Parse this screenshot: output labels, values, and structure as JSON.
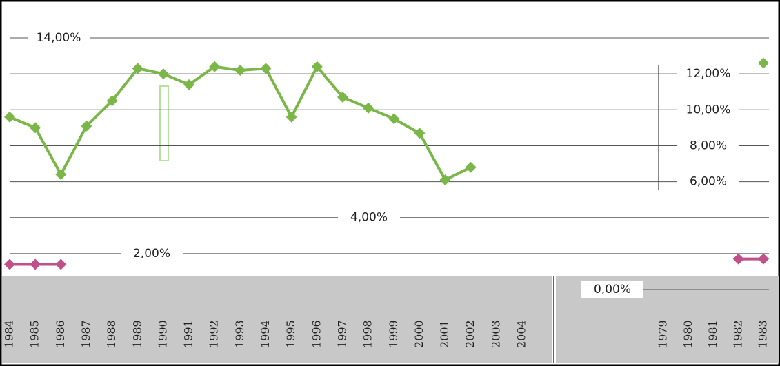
{
  "chart_data": [
    {
      "type": "line",
      "categories": [
        "1984",
        "1985",
        "1986",
        "1987",
        "1988",
        "1989",
        "1990",
        "1991",
        "1992",
        "1993",
        "1994",
        "1995",
        "1996",
        "1997",
        "1998",
        "1999",
        "2000",
        "2001",
        "2002",
        "2003",
        "2004"
      ],
      "series": [
        {
          "color": "#7ab648",
          "values": [
            9.6,
            9.0,
            6.4,
            9.1,
            10.5,
            12.3,
            12.0,
            11.4,
            12.4,
            12.2,
            12.3,
            9.6,
            12.4,
            10.7,
            10.1,
            9.5,
            8.7,
            6.1,
            6.8,
            null,
            null
          ]
        },
        {
          "color": "#c0508a",
          "values": [
            1.4,
            1.4,
            1.4,
            null,
            null,
            null,
            null,
            null,
            null,
            null,
            null,
            null,
            null,
            null,
            null,
            null,
            null,
            null,
            null,
            null,
            null
          ]
        }
      ],
      "ylim": [
        0,
        14.5
      ],
      "yticks": [
        {
          "value": 2,
          "label": "2,00%"
        },
        {
          "value": 4,
          "label": "4,00%"
        },
        {
          "value": 6,
          "label": "6,00%"
        },
        {
          "value": 8,
          "label": "8,00%"
        },
        {
          "value": 10,
          "label": "10,00%"
        },
        {
          "value": 12,
          "label": "12,00%"
        },
        {
          "value": 14,
          "label": "14,00%"
        }
      ],
      "grid": true
    },
    {
      "type": "line",
      "categories": [
        "1979",
        "1980",
        "1981",
        "1982",
        "1983"
      ],
      "series": [
        {
          "color": "#7ab648",
          "values": [
            null,
            null,
            null,
            null,
            12.6
          ]
        },
        {
          "color": "#c0508a",
          "values": [
            null,
            null,
            null,
            1.7,
            1.7
          ]
        }
      ],
      "ylim": [
        0,
        14.5
      ],
      "yticks": [
        {
          "value": 0,
          "label": "0,00%"
        }
      ],
      "grid": true
    }
  ]
}
